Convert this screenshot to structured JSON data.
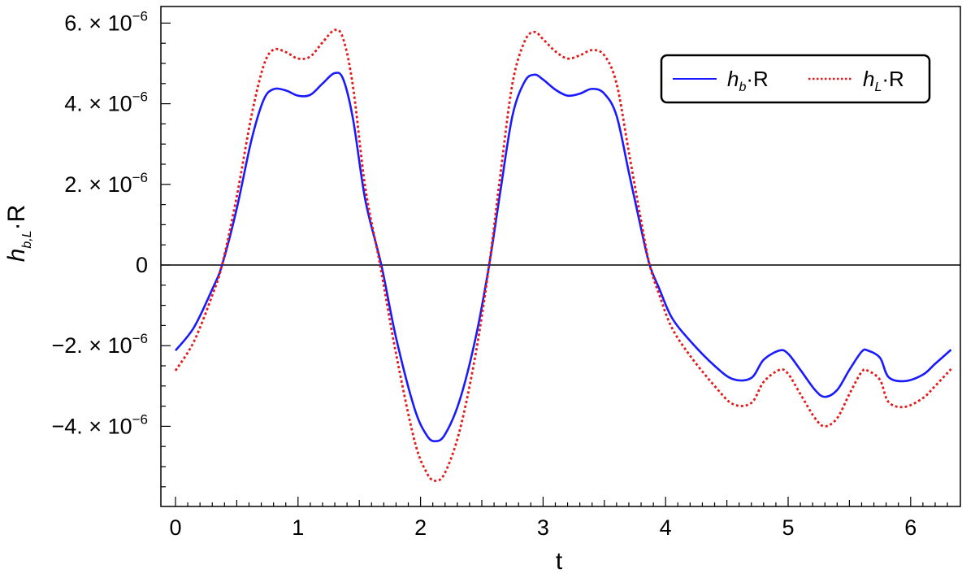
{
  "chart_data": {
    "type": "line",
    "xlabel": "t",
    "ylabel": {
      "base": "h",
      "sub": "b,L",
      "suffix": "·R"
    },
    "xlim": [
      0,
      6.35
    ],
    "ylim": [
      -5.9e-06,
      6.2e-06
    ],
    "x_ticks": [
      0,
      1,
      2,
      3,
      4,
      5,
      6
    ],
    "y_ticks": [
      {
        "value": 6e-06,
        "mantissa": "6. × 10",
        "exp": "−6"
      },
      {
        "value": 4e-06,
        "mantissa": "4. × 10",
        "exp": "−6"
      },
      {
        "value": 2e-06,
        "mantissa": "2. × 10",
        "exp": "−6"
      },
      {
        "value": 0,
        "mantissa": "0",
        "exp": ""
      },
      {
        "value": -2e-06,
        "mantissa": "−2. × 10",
        "exp": "−6"
      },
      {
        "value": -4e-06,
        "mantissa": "−4. × 10",
        "exp": "−6"
      }
    ],
    "zero_line": true,
    "grid": false,
    "legend_position": "top-right",
    "series": [
      {
        "name": {
          "base": "h",
          "sub": "b",
          "suffix": "·R"
        },
        "color": "#1a1aff",
        "dash": "solid",
        "points": [
          [
            0,
            -2.12
          ],
          [
            0.15,
            -1.55
          ],
          [
            0.3,
            -0.6
          ],
          [
            0.38,
            0
          ],
          [
            0.5,
            1.4
          ],
          [
            0.62,
            3.1
          ],
          [
            0.72,
            4.1
          ],
          [
            0.8,
            4.36
          ],
          [
            0.9,
            4.33
          ],
          [
            1.0,
            4.2
          ],
          [
            1.1,
            4.22
          ],
          [
            1.2,
            4.5
          ],
          [
            1.3,
            4.76
          ],
          [
            1.37,
            4.6
          ],
          [
            1.45,
            3.6
          ],
          [
            1.55,
            1.6
          ],
          [
            1.68,
            0
          ],
          [
            1.8,
            -1.8
          ],
          [
            1.95,
            -3.55
          ],
          [
            2.05,
            -4.22
          ],
          [
            2.12,
            -4.37
          ],
          [
            2.2,
            -4.2
          ],
          [
            2.32,
            -3.35
          ],
          [
            2.45,
            -1.8
          ],
          [
            2.56,
            0
          ],
          [
            2.65,
            1.8
          ],
          [
            2.75,
            3.7
          ],
          [
            2.85,
            4.55
          ],
          [
            2.93,
            4.72
          ],
          [
            3.0,
            4.6
          ],
          [
            3.1,
            4.35
          ],
          [
            3.2,
            4.2
          ],
          [
            3.3,
            4.25
          ],
          [
            3.4,
            4.37
          ],
          [
            3.5,
            4.25
          ],
          [
            3.6,
            3.7
          ],
          [
            3.7,
            2.3
          ],
          [
            3.8,
            0.9
          ],
          [
            3.87,
            0
          ],
          [
            3.95,
            -0.6
          ],
          [
            4.05,
            -1.3
          ],
          [
            4.2,
            -1.88
          ],
          [
            4.4,
            -2.5
          ],
          [
            4.55,
            -2.83
          ],
          [
            4.7,
            -2.8
          ],
          [
            4.8,
            -2.35
          ],
          [
            4.93,
            -2.12
          ],
          [
            5.0,
            -2.2
          ],
          [
            5.1,
            -2.6
          ],
          [
            5.22,
            -3.1
          ],
          [
            5.3,
            -3.27
          ],
          [
            5.4,
            -3.1
          ],
          [
            5.5,
            -2.6
          ],
          [
            5.6,
            -2.15
          ],
          [
            5.65,
            -2.12
          ],
          [
            5.75,
            -2.3
          ],
          [
            5.82,
            -2.78
          ],
          [
            5.95,
            -2.88
          ],
          [
            6.1,
            -2.72
          ],
          [
            6.2,
            -2.45
          ],
          [
            6.33,
            -2.1
          ]
        ]
      },
      {
        "name": {
          "base": "h",
          "sub": "L",
          "suffix": "·R"
        },
        "color": "#e61a1a",
        "dash": "dotted",
        "points": [
          [
            0,
            -2.62
          ],
          [
            0.15,
            -1.9
          ],
          [
            0.3,
            -0.75
          ],
          [
            0.38,
            0
          ],
          [
            0.5,
            1.7
          ],
          [
            0.62,
            3.7
          ],
          [
            0.72,
            4.95
          ],
          [
            0.8,
            5.34
          ],
          [
            0.9,
            5.28
          ],
          [
            1.0,
            5.12
          ],
          [
            1.1,
            5.17
          ],
          [
            1.2,
            5.52
          ],
          [
            1.3,
            5.83
          ],
          [
            1.37,
            5.6
          ],
          [
            1.45,
            4.4
          ],
          [
            1.55,
            1.9
          ],
          [
            1.67,
            0
          ],
          [
            1.8,
            -2.2
          ],
          [
            1.95,
            -4.35
          ],
          [
            2.05,
            -5.15
          ],
          [
            2.12,
            -5.35
          ],
          [
            2.2,
            -5.15
          ],
          [
            2.32,
            -4.1
          ],
          [
            2.45,
            -2.2
          ],
          [
            2.56,
            0
          ],
          [
            2.65,
            2.2
          ],
          [
            2.75,
            4.5
          ],
          [
            2.85,
            5.55
          ],
          [
            2.93,
            5.78
          ],
          [
            3.0,
            5.6
          ],
          [
            3.1,
            5.3
          ],
          [
            3.2,
            5.12
          ],
          [
            3.3,
            5.2
          ],
          [
            3.4,
            5.33
          ],
          [
            3.5,
            5.2
          ],
          [
            3.6,
            4.5
          ],
          [
            3.7,
            2.8
          ],
          [
            3.8,
            1.1
          ],
          [
            3.87,
            0
          ],
          [
            3.95,
            -0.75
          ],
          [
            4.05,
            -1.55
          ],
          [
            4.2,
            -2.25
          ],
          [
            4.4,
            -3.0
          ],
          [
            4.55,
            -3.45
          ],
          [
            4.7,
            -3.42
          ],
          [
            4.8,
            -2.9
          ],
          [
            4.93,
            -2.6
          ],
          [
            5.0,
            -2.7
          ],
          [
            5.1,
            -3.2
          ],
          [
            5.22,
            -3.8
          ],
          [
            5.3,
            -4.0
          ],
          [
            5.4,
            -3.8
          ],
          [
            5.5,
            -3.2
          ],
          [
            5.6,
            -2.65
          ],
          [
            5.65,
            -2.62
          ],
          [
            5.75,
            -2.85
          ],
          [
            5.82,
            -3.4
          ],
          [
            5.95,
            -3.52
          ],
          [
            6.1,
            -3.3
          ],
          [
            6.2,
            -3.0
          ],
          [
            6.33,
            -2.58
          ]
        ]
      }
    ]
  }
}
